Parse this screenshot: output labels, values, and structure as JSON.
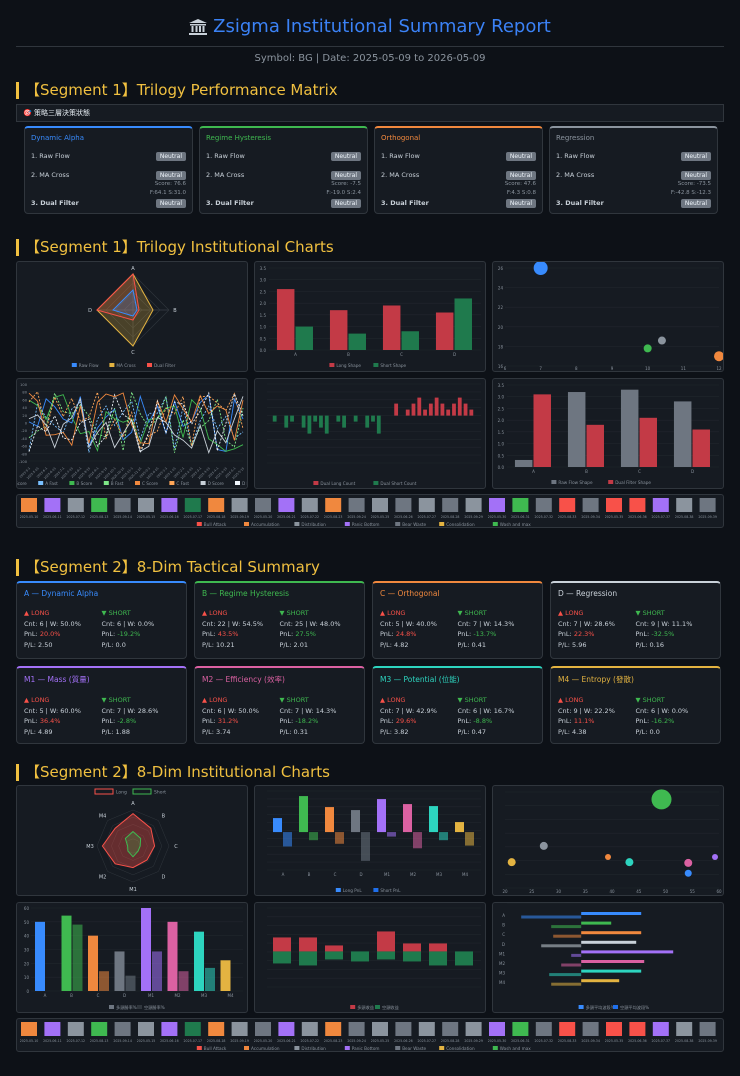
{
  "header": {
    "title": "Zsigma Institutional Summary Report",
    "subtitle": "Symbol: BG | Date: 2025-05-09 to 2026-05-09"
  },
  "sections": {
    "s1": "【Segment 1】Trilogy Performance Matrix",
    "s2": "【Segment 1】Trilogy Institutional Charts",
    "s3": "【Segment 2】8-Dim Tactical Summary",
    "s4": "【Segment 2】8-Dim Institutional Charts"
  },
  "strategy_bar": {
    "label": "🎯 策略三層決策狀態"
  },
  "matrix": [
    {
      "title": "Dynamic Alpha",
      "color": "#388bfd",
      "rows": [
        {
          "label": "1. Raw Flow",
          "status": "Neutral",
          "note": ""
        },
        {
          "label": "2. MA Cross",
          "status": "Neutral",
          "note": "Score: 76.6"
        },
        {
          "label": "",
          "status": "",
          "note": "F:64.1 S:31.0"
        },
        {
          "label": "3. Dual Filter",
          "status": "Neutral",
          "note": ""
        }
      ]
    },
    {
      "title": "Regime Hysteresis",
      "color": "#3fb950",
      "rows": [
        {
          "label": "1. Raw Flow",
          "status": "Neutral",
          "note": ""
        },
        {
          "label": "2. MA Cross",
          "status": "Neutral",
          "note": "Score: -7.5"
        },
        {
          "label": "",
          "status": "",
          "note": "F:-19.0 S:2.4"
        },
        {
          "label": "3. Dual Filter",
          "status": "Neutral",
          "note": ""
        }
      ]
    },
    {
      "title": "Orthogonal",
      "color": "#f0883e",
      "rows": [
        {
          "label": "1. Raw Flow",
          "status": "Neutral",
          "note": ""
        },
        {
          "label": "2. MA Cross",
          "status": "Neutral",
          "note": "Score: 47.6"
        },
        {
          "label": "",
          "status": "",
          "note": "F:4.3 S:0.8"
        },
        {
          "label": "3. Dual Filter",
          "status": "Neutral",
          "note": ""
        }
      ]
    },
    {
      "title": "Regression",
      "color": "#8b949e",
      "rows": [
        {
          "label": "1. Raw Flow",
          "status": "Neutral",
          "note": ""
        },
        {
          "label": "2. MA Cross",
          "status": "Neutral",
          "note": "Score: -73.5"
        },
        {
          "label": "",
          "status": "",
          "note": "F:-42.8 S:-12.3"
        },
        {
          "label": "3. Dual Filter",
          "status": "Neutral",
          "note": ""
        }
      ]
    }
  ],
  "tactical": [
    {
      "title": "A — Dynamic Alpha",
      "color": "#388bfd",
      "long": {
        "cnt": "Cnt: 6 | W: 50.0%",
        "pnl": "20.0%",
        "pf": "P/L: 2.50"
      },
      "short": {
        "cnt": "Cnt: 6 | W: 0.0%",
        "pnl": "-19.2%",
        "pf": "P/L: 0.0"
      }
    },
    {
      "title": "B — Regime Hysteresis",
      "color": "#3fb950",
      "long": {
        "cnt": "Cnt: 22 | W: 54.5%",
        "pnl": "43.5%",
        "pf": "P/L: 10.21"
      },
      "short": {
        "cnt": "Cnt: 25 | W: 48.0%",
        "pnl": "27.5%",
        "pf": "P/L: 2.01"
      }
    },
    {
      "title": "C — Orthogonal",
      "color": "#f0883e",
      "long": {
        "cnt": "Cnt: 5 | W: 40.0%",
        "pnl": "24.8%",
        "pf": "P/L: 4.82"
      },
      "short": {
        "cnt": "Cnt: 7 | W: 14.3%",
        "pnl": "-13.7%",
        "pf": "P/L: 0.41"
      }
    },
    {
      "title": "D — Regression",
      "color": "#c9d1d9",
      "long": {
        "cnt": "Cnt: 7 | W: 28.6%",
        "pnl": "22.3%",
        "pf": "P/L: 5.96"
      },
      "short": {
        "cnt": "Cnt: 9 | W: 11.1%",
        "pnl": "-32.5%",
        "pf": "P/L: 0.16"
      }
    },
    {
      "title": "M1 — Mass (質量)",
      "color": "#a371f7",
      "long": {
        "cnt": "Cnt: 5 | W: 60.0%",
        "pnl": "36.4%",
        "pf": "P/L: 4.89"
      },
      "short": {
        "cnt": "Cnt: 7 | W: 28.6%",
        "pnl": "-2.8%",
        "pf": "P/L: 1.88"
      }
    },
    {
      "title": "M2 — Efficiency (效率)",
      "color": "#db61a2",
      "long": {
        "cnt": "Cnt: 6 | W: 50.0%",
        "pnl": "31.2%",
        "pf": "P/L: 3.74"
      },
      "short": {
        "cnt": "Cnt: 7 | W: 14.3%",
        "pnl": "-18.2%",
        "pf": "P/L: 0.31"
      }
    },
    {
      "title": "M3 — Potential (位能)",
      "color": "#2dd4bf",
      "long": {
        "cnt": "Cnt: 7 | W: 42.9%",
        "pnl": "29.6%",
        "pf": "P/L: 3.82"
      },
      "short": {
        "cnt": "Cnt: 6 | W: 16.7%",
        "pnl": "-8.8%",
        "pf": "P/L: 0.47"
      }
    },
    {
      "title": "M4 — Entropy (發散)",
      "color": "#e3b341",
      "long": {
        "cnt": "Cnt: 9 | W: 22.2%",
        "pnl": "11.1%",
        "pf": "P/L: 4.38"
      },
      "short": {
        "cnt": "Cnt: 6 | W: 0.0%",
        "pnl": "-16.2%",
        "pf": "P/L: 0.0"
      }
    }
  ],
  "labels": {
    "long": "▲ LONG",
    "short": "▼ SHORT",
    "pnl": "PnL: "
  },
  "chart_data": [
    {
      "type": "radar",
      "axes": [
        "A",
        "B",
        "C",
        "D"
      ],
      "legend": [
        "Raw Flow",
        "MA Cross",
        "Dual Filter"
      ]
    },
    {
      "type": "bar",
      "categories": [
        "A",
        "B",
        "C",
        "D"
      ],
      "series": [
        {
          "name": "Long Shape",
          "values": [
            2.6,
            1.7,
            1.9,
            1.6
          ]
        },
        {
          "name": "Short Shape",
          "values": [
            1.0,
            0.7,
            0.8,
            2.2
          ]
        }
      ],
      "ylim": [
        0,
        3.5
      ]
    },
    {
      "type": "scatter",
      "xlim": [
        6,
        12
      ],
      "ylim": [
        16,
        26
      ],
      "points": [
        [
          7,
          26,
          "#388bfd"
        ],
        [
          10,
          17.8,
          "#3fb950"
        ],
        [
          10.4,
          18.6,
          "#8b949e"
        ],
        [
          12,
          17,
          "#f0883e"
        ]
      ]
    },
    {
      "type": "line",
      "ylim": [
        -100,
        100
      ],
      "legend": [
        "A Score",
        "A Fast",
        "B Score",
        "B Fast",
        "C Score",
        "C Fast",
        "D Score",
        "D Fast"
      ]
    },
    {
      "type": "bar",
      "legend": [
        "Dual Long Count",
        "Dual Short Count"
      ]
    },
    {
      "type": "bar",
      "categories": [
        "A",
        "B",
        "C",
        "D"
      ],
      "series": [
        {
          "name": "Raw Flow Shape",
          "values": [
            0.3,
            3.2,
            3.3,
            2.8
          ]
        },
        {
          "name": "Dual Filter Shape",
          "values": [
            3.1,
            1.8,
            2.1,
            1.6
          ]
        }
      ],
      "ylim": [
        0,
        3.5
      ]
    },
    {
      "type": "radar",
      "axes": [
        "M4",
        "A",
        "B",
        "C",
        "D",
        "M1",
        "M2",
        "M3"
      ],
      "legend": [
        "Long",
        "Short"
      ]
    },
    {
      "type": "bar",
      "legend": [
        "Long PnL",
        "Short PnL"
      ]
    },
    {
      "type": "scatter",
      "xlim": [
        20,
        60
      ],
      "ylim": [
        0,
        13
      ]
    },
    {
      "type": "bar",
      "legend": [
        "多頭勝率%",
        "空頭勝率%"
      ],
      "categories": [
        "A",
        "B",
        "C",
        "D",
        "M1",
        "M2",
        "M3",
        "M4"
      ],
      "ylim": [
        0,
        60
      ]
    },
    {
      "type": "bar",
      "legend": [
        "多頭收益",
        "空頭收益"
      ]
    },
    {
      "type": "hbar",
      "categories": [
        "A",
        "B",
        "C",
        "D",
        "M1",
        "M2",
        "M3",
        "M4"
      ],
      "legend": [
        "多頭平均波段%",
        "空頭平均波段%"
      ]
    }
  ],
  "regime_legend": [
    "Bull Attack",
    "Accumulation",
    "Distribution",
    "Panic Bottom",
    "Bear Waste",
    "Consolidation",
    "Wash and max"
  ]
}
